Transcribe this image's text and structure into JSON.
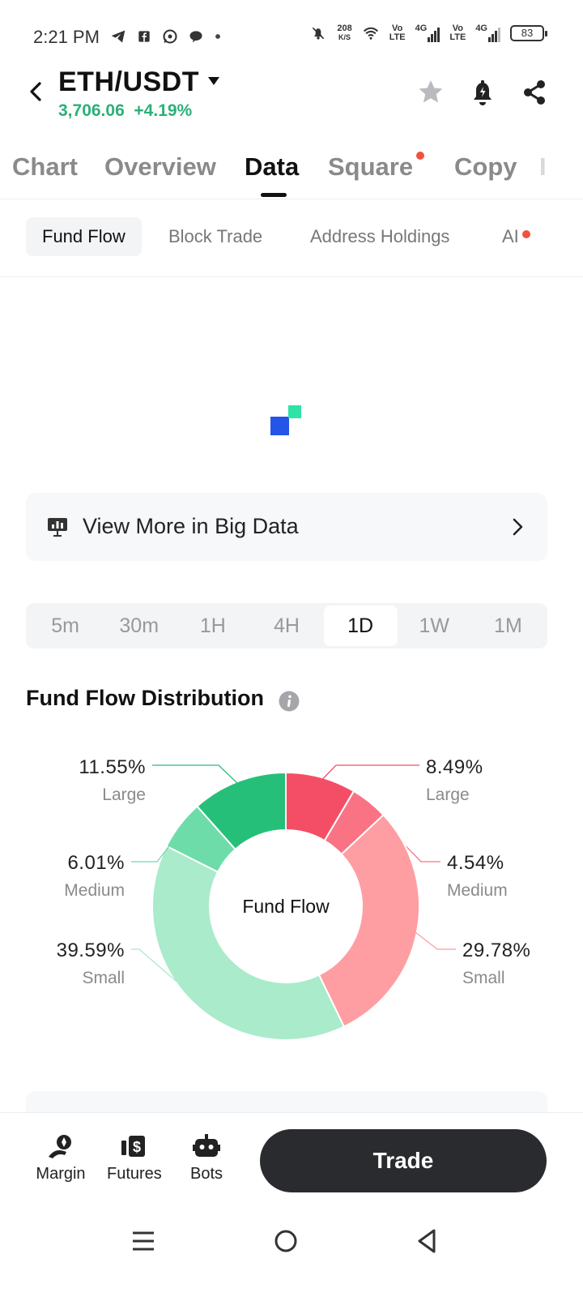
{
  "status_bar": {
    "time": "2:21 PM",
    "net_speed_value": "208",
    "net_speed_unit": "K/S",
    "sim1_label": "Vo\nLTE",
    "sim1_network": "4G",
    "sim2_label": "Vo\nLTE",
    "sim2_network": "4G",
    "battery": "83",
    "icons_left": [
      "telegram-icon",
      "facebook-icon",
      "whatsapp-icon",
      "chat-icon",
      "dot-icon"
    ],
    "icons_right": [
      "mute-icon",
      "wifi-icon",
      "signal-icon",
      "battery-icon"
    ]
  },
  "header": {
    "pair": "ETH/USDT",
    "price": "3,706.06",
    "change": "+4.19%",
    "icons": [
      "star-icon",
      "alert-bell-icon",
      "share-icon"
    ]
  },
  "tabs": [
    {
      "label": "Chart",
      "active": false
    },
    {
      "label": "Overview",
      "active": false
    },
    {
      "label": "Data",
      "active": true
    },
    {
      "label": "Square",
      "active": false,
      "badge": true
    },
    {
      "label": "Copy",
      "active": false
    },
    {
      "label": "I",
      "active": false
    }
  ],
  "subtabs": [
    {
      "label": "Fund Flow",
      "active": true
    },
    {
      "label": "Block Trade",
      "active": false
    },
    {
      "label": "Address Holdings",
      "active": false
    },
    {
      "label": "AI",
      "active": false,
      "badge": true
    }
  ],
  "big_data": {
    "label": "View More in Big Data"
  },
  "periods": [
    {
      "label": "5m",
      "active": false
    },
    {
      "label": "30m",
      "active": false
    },
    {
      "label": "1H",
      "active": false
    },
    {
      "label": "4H",
      "active": false
    },
    {
      "label": "1D",
      "active": true
    },
    {
      "label": "1W",
      "active": false
    },
    {
      "label": "1M",
      "active": false
    }
  ],
  "section": {
    "title": "Fund Flow Distribution"
  },
  "chart_data": {
    "type": "pie",
    "title": "Fund Flow Distribution",
    "center_label": "Fund Flow",
    "slices": [
      {
        "side": "outflow",
        "category": "Large",
        "percent": "8.49%",
        "value": 8.49,
        "color": "#f44e66"
      },
      {
        "side": "outflow",
        "category": "Medium",
        "percent": "4.54%",
        "value": 4.54,
        "color": "#f97385"
      },
      {
        "side": "outflow",
        "category": "Small",
        "percent": "29.78%",
        "value": 29.78,
        "color": "#fe9ea3"
      },
      {
        "side": "inflow",
        "category": "Small",
        "percent": "39.59%",
        "value": 39.59,
        "color": "#a9ebcb"
      },
      {
        "side": "inflow",
        "category": "Medium",
        "percent": "6.01%",
        "value": 6.01,
        "color": "#6ddca9"
      },
      {
        "side": "inflow",
        "category": "Large",
        "percent": "11.55%",
        "value": 11.55,
        "color": "#26bf7a"
      }
    ]
  },
  "bottom_bar": {
    "items": [
      {
        "label": "Margin",
        "icon": "margin-icon"
      },
      {
        "label": "Futures",
        "icon": "futures-icon"
      },
      {
        "label": "Bots",
        "icon": "bots-icon"
      }
    ],
    "trade_label": "Trade"
  },
  "nav": [
    "menu-icon",
    "home-icon",
    "back-icon"
  ],
  "colors": {
    "up_green": "#2bb079",
    "badge_red": "#f0523e",
    "trade_button": "#2a2b2e",
    "loader_blue": "#2454e8",
    "loader_green": "#2ee3a6"
  }
}
